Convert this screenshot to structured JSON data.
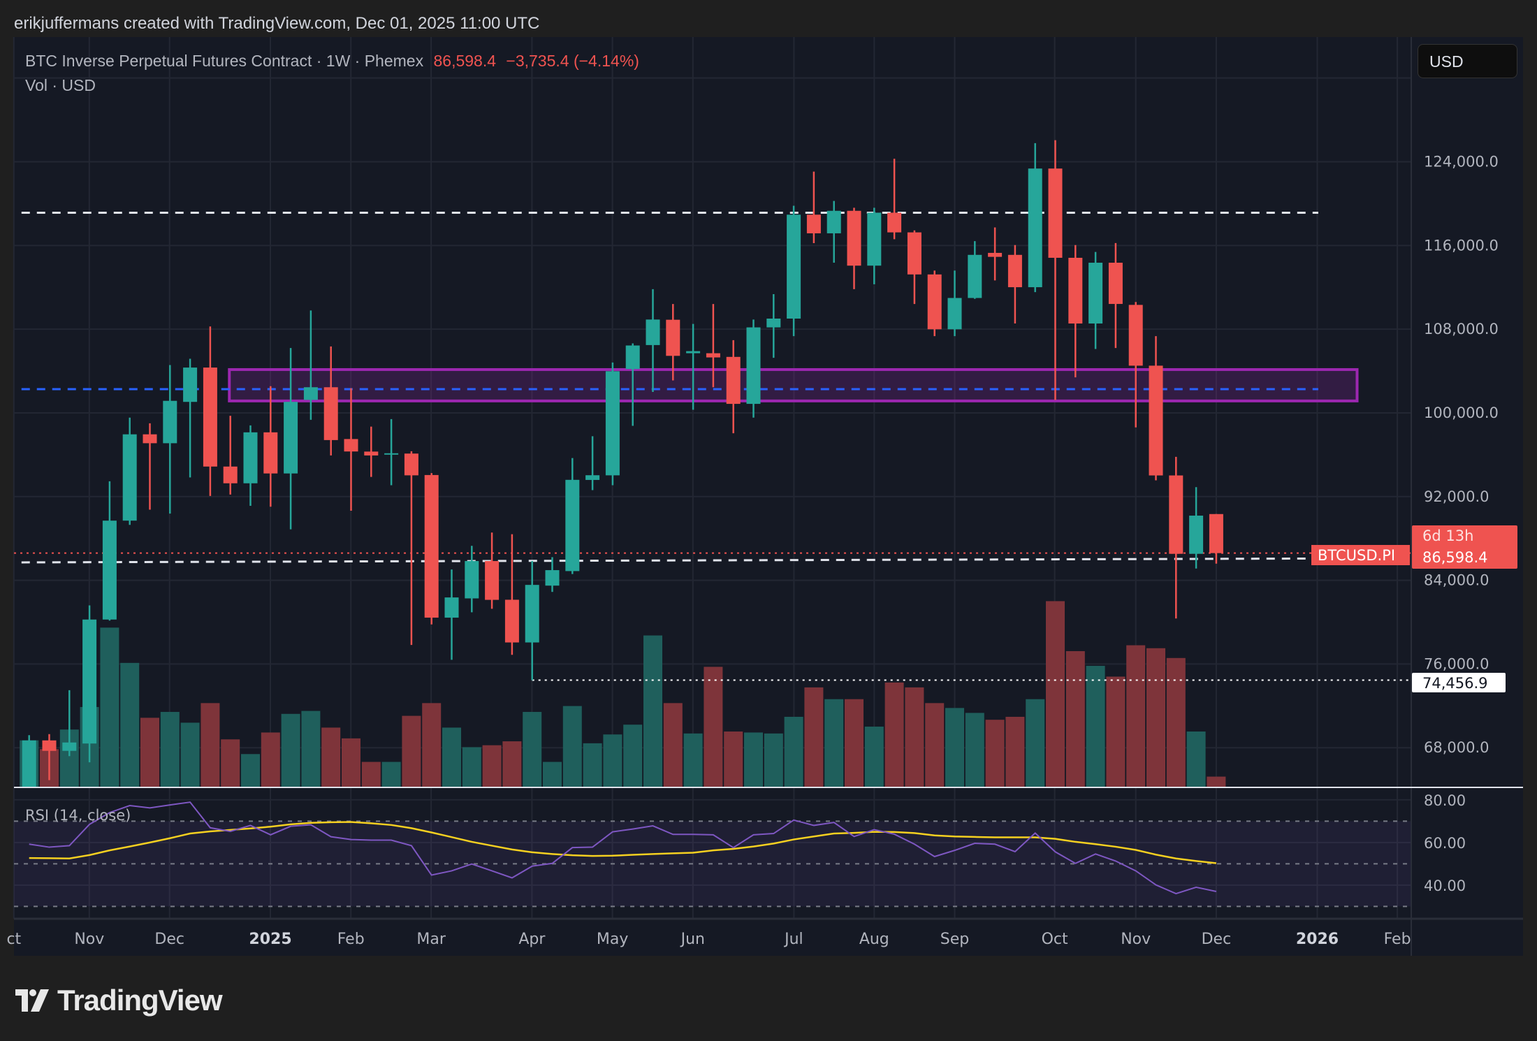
{
  "attribution": "erikjuffermans created with TradingView.com, Dec 01, 2025 11:00 UTC",
  "legend": {
    "symbol_desc": "BTC Inverse Perpetual Futures Contract · 1W · Phemex",
    "last": "86,598.4",
    "change": "−3,735.4 (−4.14%)",
    "volume_label": "Vol · USD"
  },
  "currency_button": "USD",
  "rsi_label": "RSI (14, close)",
  "symbol_tag": "BTCUSD.PI",
  "price_tag": {
    "price": "86,598.4",
    "countdown": "6d 13h"
  },
  "low_tag": "74,456.9",
  "logo_text": "TradingView",
  "colors": {
    "up": "#26a69a",
    "down": "#ef5350",
    "vol_up": "#1f5f5c",
    "vol_down": "#7e343a",
    "zone": "#9c27b0",
    "blue_line": "#2962ff",
    "rsi": "#7e57c2",
    "rsi_ma": "#f5d020"
  },
  "chart_data": {
    "type": "candlestick",
    "title": "BTC Inverse Perpetual Futures Contract · 1W · Phemex",
    "interval": "1W",
    "ylim": [
      60000,
      134000
    ],
    "price_ticks": [
      {
        "value": 124000,
        "label": "124,000.0"
      },
      {
        "value": 116000,
        "label": "116,000.0"
      },
      {
        "value": 108000,
        "label": "108,000.0"
      },
      {
        "value": 100000,
        "label": "100,000.0"
      },
      {
        "value": 92000,
        "label": "92,000.0"
      },
      {
        "value": 84000,
        "label": "84,000.0"
      },
      {
        "value": 76000,
        "label": "76,000.0"
      },
      {
        "value": 68000,
        "label": "68,000.0"
      }
    ],
    "grid_levels": [
      132000,
      124000,
      116000,
      108000,
      100000,
      92000,
      84000,
      76000,
      68000
    ],
    "time_labels": [
      {
        "week": -0.76,
        "label": "ct",
        "bold": false
      },
      {
        "week": 2.99,
        "label": "Nov",
        "bold": false
      },
      {
        "week": 6.98,
        "label": "Dec",
        "bold": false
      },
      {
        "week": 11.99,
        "label": "2025",
        "bold": true
      },
      {
        "week": 15.99,
        "label": "Feb",
        "bold": false
      },
      {
        "week": 19.98,
        "label": "Mar",
        "bold": false
      },
      {
        "week": 24.99,
        "label": "Apr",
        "bold": false
      },
      {
        "week": 28.99,
        "label": "May",
        "bold": false
      },
      {
        "week": 32.99,
        "label": "Jun",
        "bold": false
      },
      {
        "week": 38.01,
        "label": "Jul",
        "bold": false
      },
      {
        "week": 42.0,
        "label": "Aug",
        "bold": false
      },
      {
        "week": 46.0,
        "label": "Sep",
        "bold": false
      },
      {
        "week": 50.97,
        "label": "Oct",
        "bold": false
      },
      {
        "week": 55.0,
        "label": "Nov",
        "bold": false
      },
      {
        "week": 59.0,
        "label": "Dec",
        "bold": false
      },
      {
        "week": 64.02,
        "label": "2026",
        "bold": true
      },
      {
        "week": 68.0,
        "label": "Feb",
        "bold": false
      }
    ],
    "ohlc": [
      [
        64000,
        69200,
        63000,
        68700
      ],
      [
        68700,
        69300,
        64900,
        67700
      ],
      [
        67700,
        73500,
        67200,
        68500
      ],
      [
        68400,
        81600,
        66600,
        80250
      ],
      [
        80250,
        93460,
        80150,
        89700
      ],
      [
        89700,
        99550,
        89300,
        97950
      ],
      [
        97950,
        99000,
        90750,
        97100
      ],
      [
        97100,
        104570,
        90370,
        101150
      ],
      [
        101050,
        105170,
        93830,
        104330
      ],
      [
        104330,
        108260,
        92060,
        94870
      ],
      [
        94870,
        99720,
        92190,
        93270
      ],
      [
        93270,
        98800,
        91120,
        98140
      ],
      [
        98140,
        102550,
        91030,
        94210
      ],
      [
        94210,
        106200,
        88870,
        101050
      ],
      [
        101240,
        109790,
        99340,
        102450
      ],
      [
        102450,
        106350,
        95930,
        97400
      ],
      [
        97500,
        102360,
        90650,
        96310
      ],
      [
        96300,
        98690,
        93880,
        95930
      ],
      [
        96060,
        99400,
        93090,
        96140
      ],
      [
        96110,
        96330,
        77820,
        94030
      ],
      [
        94060,
        94250,
        79780,
        80430
      ],
      [
        80430,
        85030,
        76400,
        82360
      ],
      [
        82270,
        87290,
        80940,
        85840
      ],
      [
        85840,
        88560,
        81280,
        82130
      ],
      [
        82140,
        88400,
        76880,
        78060
      ],
      [
        78060,
        85840,
        74457,
        83560
      ],
      [
        83490,
        86210,
        82890,
        84970
      ],
      [
        84880,
        95680,
        84600,
        93600
      ],
      [
        93590,
        97770,
        92620,
        94040
      ],
      [
        94030,
        104810,
        93090,
        103980
      ],
      [
        104190,
        106640,
        98760,
        106440
      ],
      [
        106480,
        111820,
        102000,
        108920
      ],
      [
        108900,
        110400,
        103100,
        105450
      ],
      [
        105700,
        108500,
        100300,
        105900
      ],
      [
        105700,
        110400,
        102450,
        105300
      ],
      [
        105350,
        106950,
        98050,
        100860
      ],
      [
        100860,
        108920,
        99550,
        108170
      ],
      [
        108170,
        111350,
        105260,
        109010
      ],
      [
        109010,
        119790,
        107330,
        118940
      ],
      [
        118940,
        123060,
        116220,
        117160
      ],
      [
        117160,
        120250,
        114350,
        119310
      ],
      [
        119310,
        119600,
        111820,
        114070
      ],
      [
        114070,
        119600,
        112290,
        119130
      ],
      [
        119130,
        124280,
        116600,
        117250
      ],
      [
        117250,
        117440,
        110400,
        113230
      ],
      [
        113230,
        113600,
        107330,
        107990
      ],
      [
        107990,
        113600,
        107330,
        110980
      ],
      [
        110980,
        116410,
        110900,
        115100
      ],
      [
        115290,
        117720,
        112660,
        114910
      ],
      [
        115100,
        116040,
        108540,
        112010
      ],
      [
        112010,
        125780,
        111540,
        123350
      ],
      [
        123350,
        126060,
        101220,
        114820
      ],
      [
        114820,
        116040,
        103390,
        108540
      ],
      [
        108540,
        115380,
        106110,
        114350
      ],
      [
        114350,
        116230,
        106200,
        110410
      ],
      [
        110320,
        110600,
        98610,
        104510
      ],
      [
        104510,
        107330,
        93550,
        94020
      ],
      [
        94020,
        95800,
        80350,
        86530
      ],
      [
        86530,
        92900,
        85120,
        90180
      ],
      [
        90330,
        90330,
        85590,
        86598.4
      ]
    ],
    "volume_relative": [
      48,
      39,
      59,
      82,
      163,
      127,
      71,
      77,
      66,
      86,
      49,
      34,
      56,
      75,
      78,
      61,
      50,
      26,
      26,
      73,
      86,
      61,
      41,
      43,
      47,
      77,
      26,
      83,
      45,
      54,
      64,
      155,
      86,
      55,
      123,
      57,
      56,
      55,
      72,
      102,
      90,
      90,
      62,
      107,
      102,
      86,
      81,
      76,
      69,
      72,
      90,
      190,
      139,
      124,
      113,
      145,
      142,
      132,
      57,
      11
    ],
    "rsi": {
      "ylim": [
        20,
        90
      ],
      "ticks": [
        {
          "value": 80,
          "label": "80.00"
        },
        {
          "value": 60,
          "label": "60.00"
        },
        {
          "value": 40,
          "label": "40.00"
        }
      ],
      "bands": [
        70,
        50,
        30
      ],
      "values": [
        59.2,
        57.8,
        58.5,
        68.5,
        74,
        77.3,
        76.2,
        77.6,
        78.9,
        66.9,
        65.2,
        68,
        63.6,
        67.6,
        68.3,
        62.7,
        61.4,
        61.1,
        61.1,
        58.5,
        44.7,
        46.7,
        49.9,
        46.7,
        43.4,
        48.9,
        50.2,
        57.6,
        57.8,
        65,
        66.3,
        67.8,
        63.8,
        63.8,
        63.6,
        57.6,
        63.6,
        64.2,
        70.5,
        68,
        69.4,
        62.8,
        66,
        63.9,
        59.2,
        53.4,
        56.3,
        59.6,
        59.2,
        55.7,
        64.4,
        55.6,
        50.2,
        54.6,
        51.3,
        46.7,
        40.1,
        36,
        39,
        37
      ],
      "ma": [
        52.7,
        52.6,
        52.5,
        54.1,
        56.3,
        58.1,
        60,
        62,
        64.2,
        65.2,
        65.9,
        66.6,
        67.4,
        68.5,
        69.2,
        69.5,
        69.6,
        69,
        68.2,
        66.7,
        64.7,
        62.5,
        60.3,
        58.5,
        56.7,
        55.4,
        54.6,
        54,
        53.7,
        53.8,
        54.2,
        54.6,
        54.9,
        55.2,
        56.3,
        57,
        58.1,
        59.5,
        61.4,
        62.8,
        64.2,
        64.5,
        65,
        64.9,
        64.4,
        63.3,
        62.8,
        62.6,
        62.4,
        62.4,
        62.4,
        61.7,
        60.3,
        59.2,
        58,
        56.5,
        54.3,
        52.5,
        51.3,
        50.3
      ]
    },
    "drawings": {
      "resistance_line": {
        "price_start": 119130,
        "price_end": 119130,
        "week_start": -0.38,
        "week_end": 64.07
      },
      "blue_line": {
        "price_start": 102270,
        "price_end": 102270,
        "week_start": -0.38,
        "week_end": 64.07
      },
      "support_line": {
        "price_start": 85710,
        "price_end": 86080,
        "week_start": -0.38,
        "week_end": 64.07
      },
      "zone": {
        "price_top": 104140,
        "price_bottom": 101140,
        "week_start": 9.95,
        "week_end": 66.0
      },
      "low_line": {
        "price": 74456.9,
        "week_start": 25
      },
      "last_price": 86598.4
    }
  }
}
